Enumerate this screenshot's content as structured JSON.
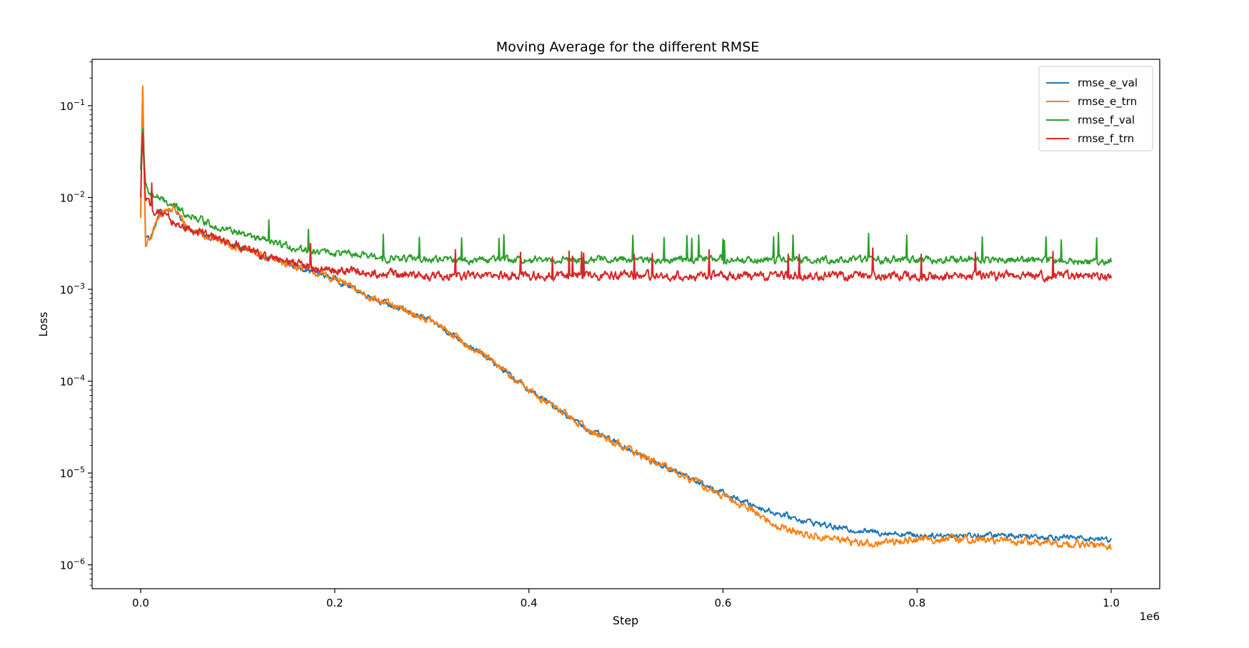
{
  "chart_data": {
    "type": "line",
    "title": "Moving Average for the different RMSE",
    "xlabel": "Step",
    "ylabel": "Loss",
    "x_offset_text": "1e6",
    "yscale": "log",
    "xlim": [
      -50000,
      1050000
    ],
    "ylim": [
      5.5e-07,
      0.32
    ],
    "x_ticks": [
      {
        "value": 0,
        "label": "0.0"
      },
      {
        "value": 200000,
        "label": "0.2"
      },
      {
        "value": 400000,
        "label": "0.4"
      },
      {
        "value": 600000,
        "label": "0.6"
      },
      {
        "value": 800000,
        "label": "0.8"
      },
      {
        "value": 1000000,
        "label": "1.0"
      }
    ],
    "y_ticks": [
      {
        "value": 0.1,
        "base": "10",
        "exp": "−1"
      },
      {
        "value": 0.01,
        "base": "10",
        "exp": "−2"
      },
      {
        "value": 0.001,
        "base": "10",
        "exp": "−3"
      },
      {
        "value": 0.0001,
        "base": "10",
        "exp": "−4"
      },
      {
        "value": 1e-05,
        "base": "10",
        "exp": "−5"
      },
      {
        "value": 1e-06,
        "base": "10",
        "exp": "−6"
      }
    ],
    "grid": false,
    "legend_position": "upper right",
    "series": [
      {
        "name": "rmse_e_val",
        "color": "#1f77b4",
        "x": [
          0,
          2000,
          5000,
          10000,
          20000,
          35000,
          50000,
          75000,
          100000,
          130000,
          160000,
          200000,
          230000,
          260000,
          300000,
          330000,
          360000,
          400000,
          430000,
          460000,
          500000,
          530000,
          560000,
          600000,
          630000,
          650000,
          680000,
          700000,
          720000,
          750000,
          780000,
          800000,
          850000,
          900000,
          950000,
          1000000
        ],
        "y": [
          0.006,
          0.19,
          0.004,
          0.0035,
          0.007,
          0.0075,
          0.0045,
          0.0036,
          0.0029,
          0.0022,
          0.0018,
          0.0013,
          0.0009,
          0.00065,
          0.00045,
          0.00028,
          0.00017,
          8e-05,
          5e-05,
          3e-05,
          1.9e-05,
          1.3e-05,
          9.5e-06,
          6e-06,
          4.5e-06,
          3.8e-06,
          3.1e-06,
          2.8e-06,
          2.5e-06,
          2.3e-06,
          2.2e-06,
          2.1e-06,
          2.1e-06,
          2.1e-06,
          2e-06,
          1.9e-06
        ]
      },
      {
        "name": "rmse_e_trn",
        "color": "#ff7f0e",
        "x": [
          0,
          2000,
          5000,
          10000,
          20000,
          35000,
          50000,
          75000,
          100000,
          130000,
          160000,
          200000,
          230000,
          260000,
          300000,
          330000,
          360000,
          400000,
          430000,
          460000,
          500000,
          530000,
          560000,
          600000,
          630000,
          650000,
          680000,
          700000,
          720000,
          750000,
          780000,
          800000,
          850000,
          900000,
          950000,
          1000000
        ],
        "y": [
          0.006,
          0.2,
          0.003,
          0.0035,
          0.007,
          0.0075,
          0.0045,
          0.0036,
          0.0029,
          0.0022,
          0.0018,
          0.0013,
          0.0009,
          0.00065,
          0.00045,
          0.00028,
          0.00017,
          8e-05,
          5e-05,
          3e-05,
          1.9e-05,
          1.3e-05,
          9.5e-06,
          5.5e-06,
          4e-06,
          2.8e-06,
          2.2e-06,
          2e-06,
          1.9e-06,
          1.7e-06,
          1.8e-06,
          1.9e-06,
          1.9e-06,
          1.8e-06,
          1.7e-06,
          1.6e-06
        ]
      },
      {
        "name": "rmse_f_val",
        "color": "#2ca02c",
        "x": [
          0,
          2000,
          5000,
          10000,
          25000,
          50000,
          80000,
          110000,
          140000,
          170000,
          200000,
          250000,
          300000,
          400000,
          500000,
          600000,
          700000,
          800000,
          900000,
          1000000
        ],
        "y": [
          0.02,
          0.06,
          0.013,
          0.011,
          0.009,
          0.0065,
          0.0048,
          0.0038,
          0.0031,
          0.0027,
          0.0025,
          0.0022,
          0.0021,
          0.0021,
          0.0021,
          0.0021,
          0.0021,
          0.0021,
          0.0021,
          0.002
        ]
      },
      {
        "name": "rmse_f_trn",
        "color": "#d62728",
        "x": [
          0,
          2000,
          5000,
          10000,
          25000,
          50000,
          80000,
          110000,
          140000,
          170000,
          200000,
          250000,
          300000,
          400000,
          500000,
          600000,
          700000,
          800000,
          900000,
          1000000
        ],
        "y": [
          0.01,
          0.055,
          0.009,
          0.008,
          0.006,
          0.0045,
          0.0035,
          0.0027,
          0.0021,
          0.0018,
          0.0016,
          0.0015,
          0.0014,
          0.0014,
          0.0014,
          0.0014,
          0.0014,
          0.0014,
          0.0014,
          0.0014
        ]
      }
    ]
  }
}
